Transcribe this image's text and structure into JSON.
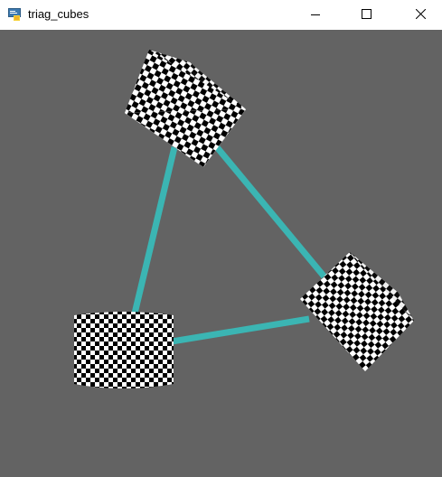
{
  "window": {
    "title": "triag_cubes",
    "icon": "python-icon",
    "controls": {
      "minimize": "minimize-icon",
      "maximize": "maximize-icon",
      "close": "close-icon"
    }
  },
  "scene": {
    "background_color": "#636363",
    "connector_color": "#3bb5b3",
    "cube_texture": "checkerboard",
    "cube_count": 3,
    "connector_count": 3
  }
}
